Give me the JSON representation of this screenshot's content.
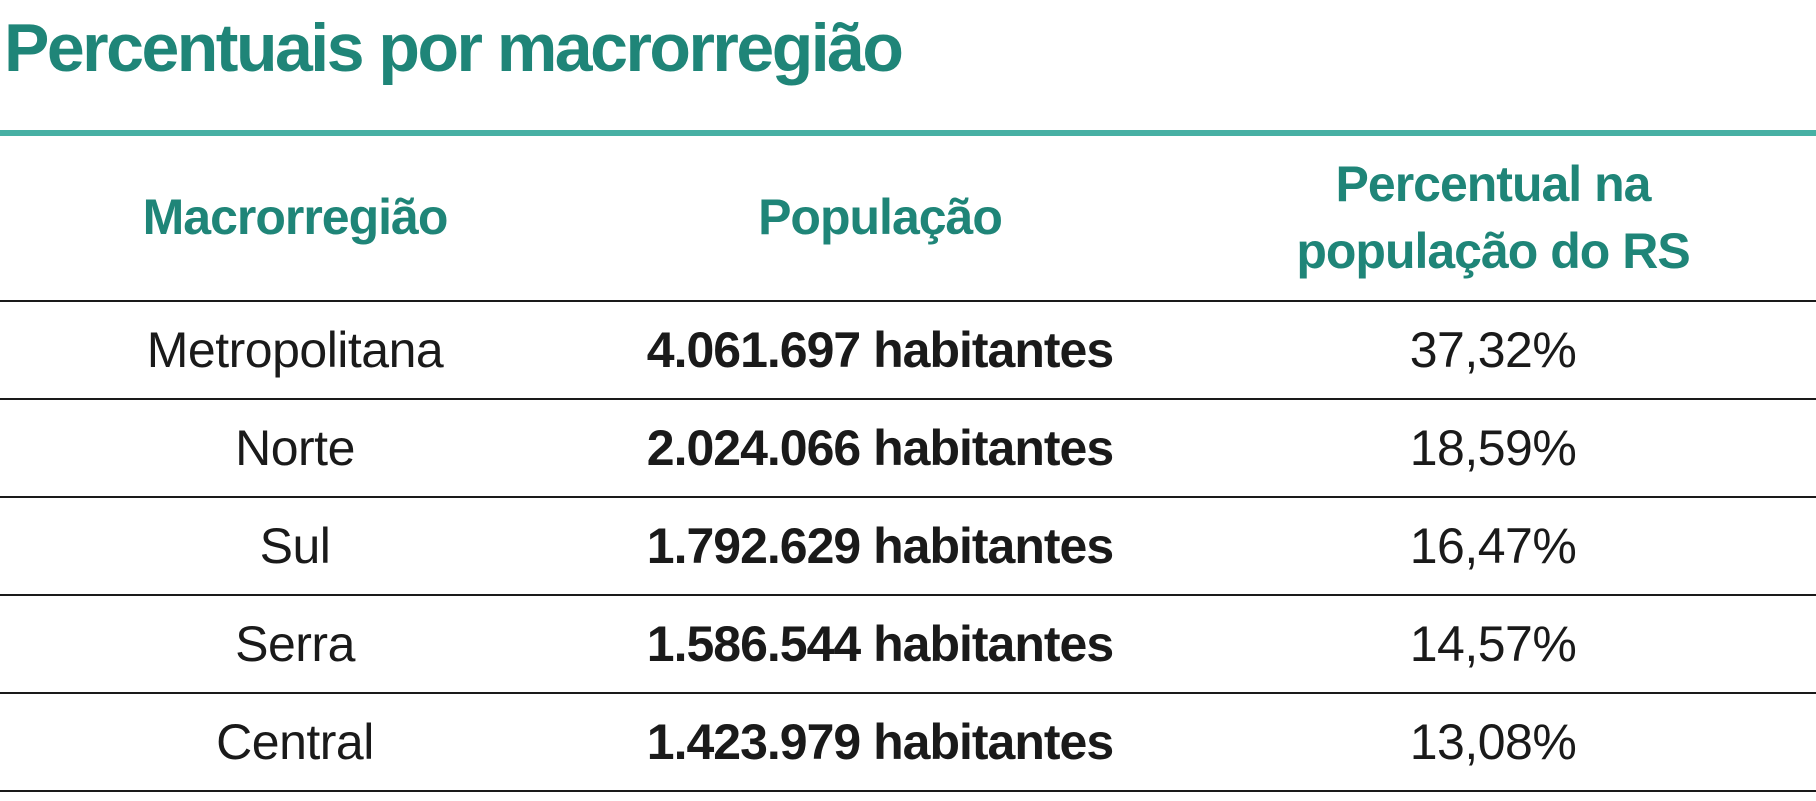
{
  "title": "Percentuais por macrorregião",
  "colors": {
    "accent": "#1f8578",
    "rule": "#47b0a4",
    "text": "#1a1a1a"
  },
  "headers": {
    "region": "Macrorregião",
    "population": "População",
    "percent_line1": "Percentual na",
    "percent_line2": "população do RS"
  },
  "rows": [
    {
      "region": "Metropolitana",
      "population": "4.061.697 habitantes",
      "percent": "37,32%"
    },
    {
      "region": "Norte",
      "population": "2.024.066 habitantes",
      "percent": "18,59%"
    },
    {
      "region": "Sul",
      "population": "1.792.629 habitantes",
      "percent": "16,47%"
    },
    {
      "region": "Serra",
      "population": "1.586.544 habitantes",
      "percent": "14,57%"
    },
    {
      "region": "Central",
      "population": "1.423.979 habitantes",
      "percent": "13,08%"
    }
  ]
}
